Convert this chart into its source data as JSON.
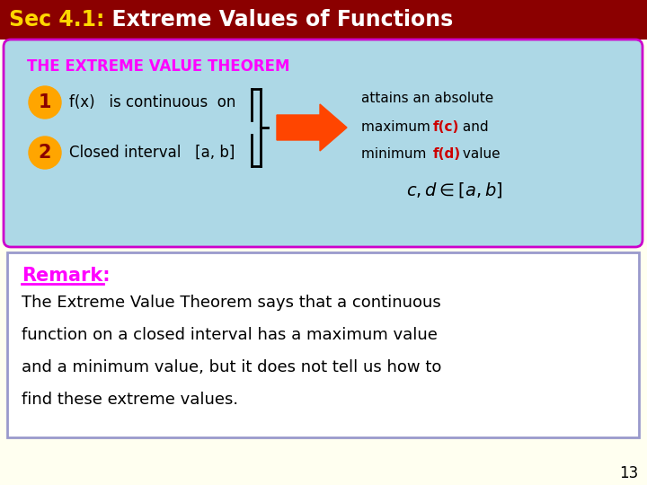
{
  "title_sec": "Sec 4.1:",
  "title_rest": "  Extreme Values of Functions",
  "title_color_sec": "#FFD700",
  "title_color_rest": "#FFFFFF",
  "title_bg": "#8B0000",
  "page_bg": "#FFFFF0",
  "theorem_box_bg": "#ADD8E6",
  "theorem_box_border": "#CC00CC",
  "theorem_title": "THE EXTREME VALUE THEOREM",
  "theorem_title_color": "#FF00FF",
  "circle1_color": "#FFA500",
  "circle2_color": "#FFA500",
  "circle_text_color": "#8B0000",
  "label1": "f(x)   is continuous  on",
  "label2": "Closed interval   [a, b]",
  "arrow_color": "#FF4500",
  "result_text_line1": "attains an absolute",
  "result_text_line2a": "maximum ",
  "result_fc": "f(c)",
  "result_text_line2b": " and",
  "result_text_line3a": "minimum ",
  "result_fd": "f(d)",
  "result_text_line3b": " value",
  "result_text_color": "#000000",
  "result_color_fc": "#CC0000",
  "result_color_fd": "#CC0000",
  "remark_box_bg": "#FFFFFF",
  "remark_box_border": "#9999CC",
  "remark_label": "Remark:",
  "remark_label_color": "#FF00FF",
  "remark_lines": [
    "The Extreme Value Theorem says that a continuous",
    "function on a closed interval has a maximum value",
    "and a minimum value, but it does not tell us how to",
    "find these extreme values."
  ],
  "remark_text_color": "#000000",
  "page_number": "13",
  "bracket_color": "#000000"
}
